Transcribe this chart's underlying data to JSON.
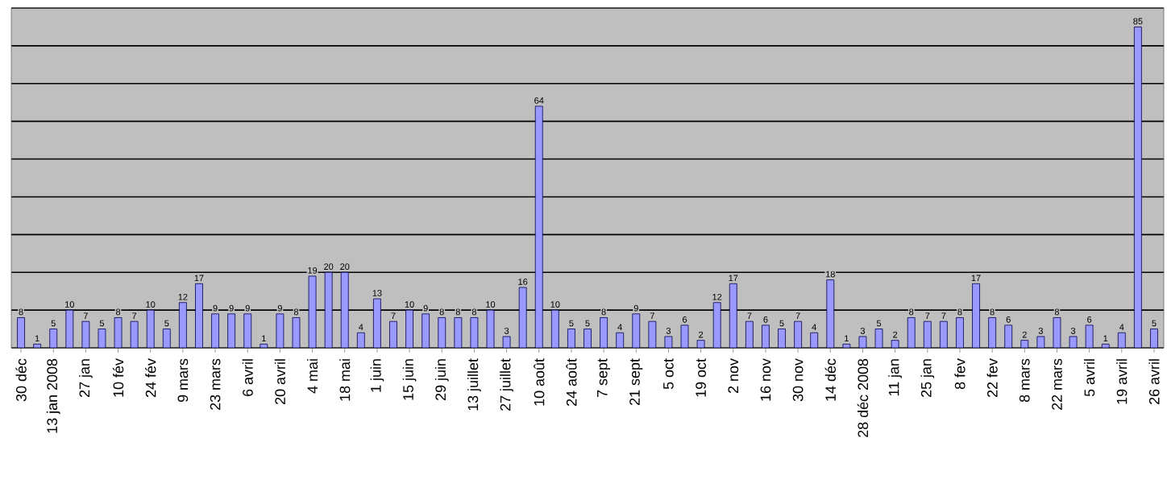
{
  "chart_data": {
    "type": "bar",
    "categories": [
      "30 déc",
      null,
      "13 jan 2008",
      null,
      "27 jan",
      null,
      "10 fév",
      null,
      "24 fév",
      null,
      "9 mars",
      null,
      "23 mars",
      null,
      "6 avril",
      null,
      "20 avril",
      null,
      "4 mai",
      null,
      "18 mai",
      null,
      "1 juin",
      null,
      "15 juin",
      null,
      "29 juin",
      null,
      "13 juillet",
      null,
      "27 juillet",
      null,
      "10 août",
      null,
      "24 août",
      null,
      "7 sept",
      null,
      "21 sept",
      null,
      "5 oct",
      null,
      "19 oct",
      null,
      "2 nov",
      null,
      "16 nov",
      null,
      "30 nov",
      null,
      "14 déc",
      null,
      "28 déc 2008",
      null,
      "11 jan",
      null,
      "25 jan",
      null,
      "8 fev",
      null,
      "22 fev",
      null,
      "8 mars",
      null,
      "22 mars",
      null,
      "5 avril",
      null,
      "19 avril",
      null,
      "26 avril"
    ],
    "values": [
      8,
      1,
      5,
      10,
      7,
      5,
      8,
      7,
      10,
      5,
      12,
      17,
      9,
      9,
      9,
      1,
      9,
      8,
      19,
      20,
      20,
      4,
      13,
      7,
      10,
      9,
      8,
      8,
      8,
      10,
      3,
      16,
      64,
      10,
      5,
      5,
      8,
      4,
      9,
      7,
      3,
      6,
      2,
      12,
      17,
      7,
      6,
      5,
      7,
      4,
      18,
      1,
      3,
      5,
      2,
      8,
      7,
      7,
      8,
      17,
      8,
      6,
      2,
      3,
      8,
      3,
      6,
      1,
      4,
      85,
      5
    ],
    "color": "#9999ff",
    "ylim": [
      0,
      90
    ],
    "yticks": [
      {
        "value": 0,
        "label": null
      },
      {
        "value": 10,
        "label": null
      },
      {
        "value": 20,
        "label": null
      },
      {
        "value": 30,
        "label": null
      },
      {
        "value": 40,
        "label": null
      },
      {
        "value": 50,
        "label": null
      },
      {
        "value": 60,
        "label": null
      },
      {
        "value": 70,
        "label": null
      },
      {
        "value": 80,
        "label": null
      },
      {
        "value": 90,
        "label": null
      }
    ],
    "grid": "y",
    "tick_labels": "x",
    "data_labels": true
  }
}
